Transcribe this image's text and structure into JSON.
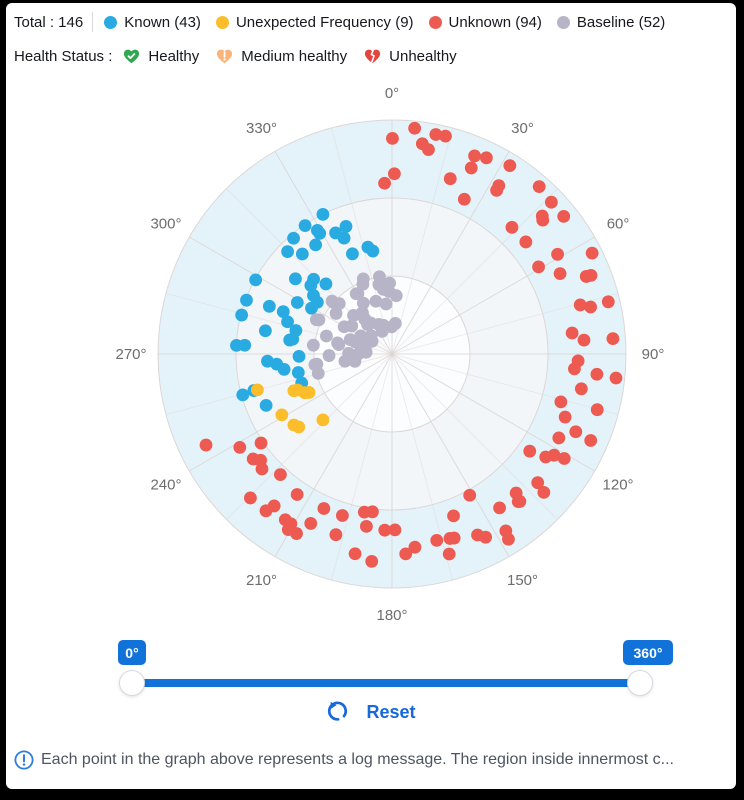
{
  "header": {
    "total_label": "Total : 146",
    "legend": [
      {
        "label": "Known (43)",
        "color": "#29abe2"
      },
      {
        "label": "Unexpected Frequency (9)",
        "color": "#fbbd2a"
      },
      {
        "label": "Unknown (94)",
        "color": "#ed5a51"
      },
      {
        "label": "Baseline (52)",
        "color": "#b6b4c6"
      }
    ]
  },
  "health": {
    "label": "Health Status :",
    "items": [
      {
        "label": "Healthy",
        "icon": "heart-check-icon",
        "color": "#2fa84f"
      },
      {
        "label": "Medium healthy",
        "icon": "heart-exclamation-icon",
        "color": "#fbb377"
      },
      {
        "label": "Unhealthy",
        "icon": "heart-broken-icon",
        "color": "#e8443f"
      }
    ]
  },
  "chart_data": {
    "type": "scatter",
    "coordinate": "polar",
    "title": "",
    "angle_tick_values": [
      0,
      30,
      60,
      90,
      120,
      150,
      180,
      210,
      240,
      270,
      300,
      330
    ],
    "angle_tick_labels": [
      "0°",
      "30°",
      "60°",
      "90°",
      "120°",
      "150°",
      "180°",
      "210°",
      "240°",
      "270°",
      "300°",
      "330°"
    ],
    "radial_rings": 3,
    "ring_fills_inner_to_outer": [
      "#fcfdff",
      "#f3f6f9",
      "#e4f3f9"
    ],
    "grid_line_color": "#dcd7d7",
    "tick_label_color": "#6d6d6d",
    "total": 146,
    "series": [
      {
        "name": "Known",
        "count": 43,
        "color": "#29abe2",
        "arcs": [
          {
            "count": 43,
            "angle_from": 249,
            "angle_to": 348,
            "r_from": 0.37,
            "r_to": 0.67
          }
        ]
      },
      {
        "name": "Unexpected Frequency",
        "count": 9,
        "color": "#fbbd2a",
        "arcs": [
          {
            "count": 9,
            "angle_from": 226,
            "angle_to": 258,
            "r_from": 0.39,
            "r_to": 0.6
          }
        ]
      },
      {
        "name": "Unknown",
        "count": 94,
        "color": "#ed5a51",
        "arcs": [
          {
            "count": 58,
            "angle_from": -6,
            "angle_to": 150,
            "r_from": 0.71,
            "r_to": 0.97
          },
          {
            "count": 36,
            "angle_from": 150,
            "angle_to": 244,
            "r_from": 0.67,
            "r_to": 0.9
          }
        ]
      },
      {
        "name": "Baseline",
        "count": 52,
        "color": "#b6b4c6",
        "arcs": [
          {
            "count": 52,
            "angle_from": 255,
            "angle_to": 365,
            "r_from": 0.1,
            "r_to": 0.36
          }
        ]
      }
    ]
  },
  "slider": {
    "min_label": "0°",
    "max_label": "360°",
    "accent_color": "#1173d9"
  },
  "reset": {
    "label": "Reset",
    "color": "#1668db"
  },
  "footer": {
    "text": "Each point in the graph above represents a log message. The region inside innermost c..."
  }
}
